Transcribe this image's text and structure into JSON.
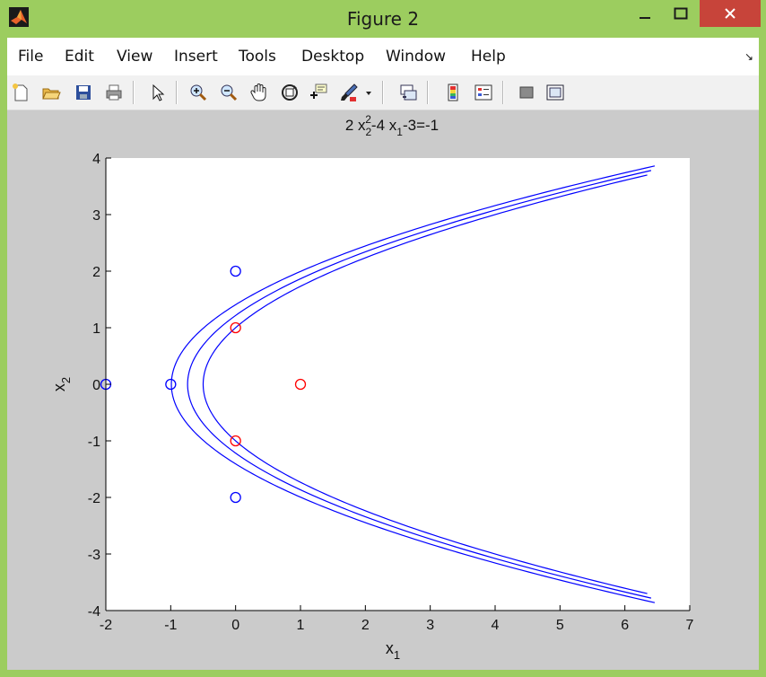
{
  "window": {
    "title": "Figure 2"
  },
  "menubar": {
    "items": [
      "File",
      "Edit",
      "View",
      "Insert",
      "Tools",
      "Desktop",
      "Window",
      "Help"
    ]
  },
  "toolbar": {
    "buttons": [
      "new-figure-icon",
      "open-file-icon",
      "save-icon",
      "print-icon",
      "pointer-icon",
      "zoom-in-icon",
      "zoom-out-icon",
      "pan-hand-icon",
      "rotate-3d-icon",
      "data-cursor-icon",
      "brush-icon",
      "brush-dropdown-icon",
      "link-plot-icon",
      "colorbar-icon",
      "legend-icon",
      "hide-plot-tools-icon",
      "show-plot-tools-icon"
    ]
  },
  "colors": {
    "title_bar": "#9ccd5f",
    "close_button": "#c7443a",
    "curve": "#0000ff",
    "marker_blue": "#0000ff",
    "marker_red": "#ff0000",
    "axes_bg": "#ffffff",
    "figure_bg": "#cbcbcb"
  },
  "chart_data": {
    "type": "line",
    "title_parts": {
      "base1": "2 x",
      "sub1": "2",
      "sup1": "2",
      "base2": "-4 x",
      "sub2": "1",
      "tail": "-3=-1"
    },
    "xlabel": {
      "base": "x",
      "sub": "1"
    },
    "ylabel": {
      "base": "x",
      "sub": "2"
    },
    "xlim": [
      -2,
      7
    ],
    "ylim": [
      -4,
      4
    ],
    "xticks": [
      -2,
      -1,
      0,
      1,
      2,
      3,
      4,
      5,
      6,
      7
    ],
    "yticks": [
      -4,
      -3,
      -2,
      -1,
      0,
      1,
      2,
      3,
      4
    ],
    "grid": false,
    "series": [
      {
        "equation": "x1 = (2*x2^2 - 3 + 1)/4",
        "vertex_x1": -0.5,
        "t_range": [
          -3.7,
          3.7
        ]
      },
      {
        "equation": "x1 = (2*x2^2 - 3 + 1)/4 - 0.24",
        "vertex_x1": -0.74,
        "t_range": [
          -3.78,
          3.78
        ]
      },
      {
        "equation": "x1 = (2*x2^2 - 3 + 1)/4 - 0.49",
        "vertex_x1": -0.99,
        "t_range": [
          -3.86,
          3.86
        ]
      }
    ],
    "markers_blue": [
      [
        -2,
        0
      ],
      [
        -1,
        0
      ],
      [
        0,
        2
      ],
      [
        0,
        -2
      ]
    ],
    "markers_red": [
      [
        0,
        1
      ],
      [
        0,
        -1
      ],
      [
        1,
        0
      ]
    ]
  }
}
